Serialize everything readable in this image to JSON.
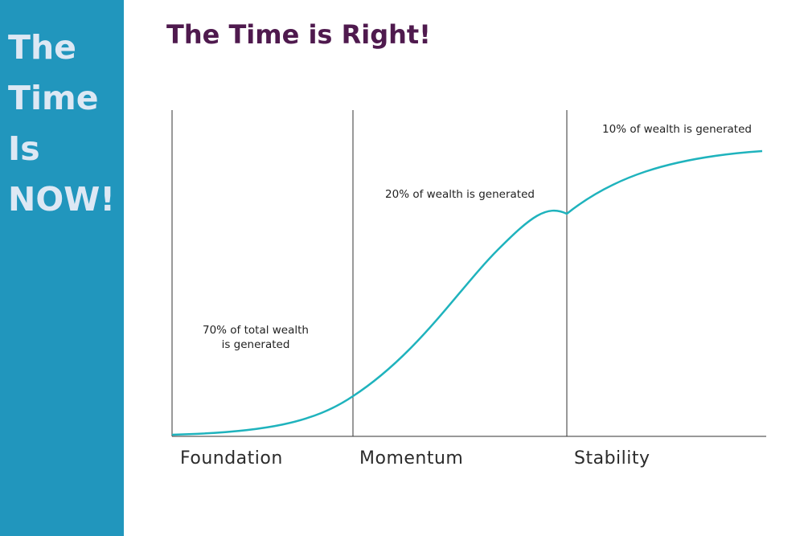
{
  "sidebar": {
    "lines": [
      "The",
      "Time",
      "Is",
      "NOW!"
    ],
    "background": "#2196bd",
    "text_color": "#dde8f4"
  },
  "header": {
    "title": "The Time is Right!",
    "color": "#4f1a4e"
  },
  "diagram": {
    "curve_color": "#1fb3bd",
    "phases": [
      {
        "name": "Foundation",
        "note_lines": [
          "70% of total wealth",
          "is generated"
        ]
      },
      {
        "name": "Momentum",
        "note_lines": [
          "20% of wealth is generated"
        ]
      },
      {
        "name": "Stability",
        "note_lines": [
          "10% of wealth is generated"
        ]
      }
    ]
  }
}
